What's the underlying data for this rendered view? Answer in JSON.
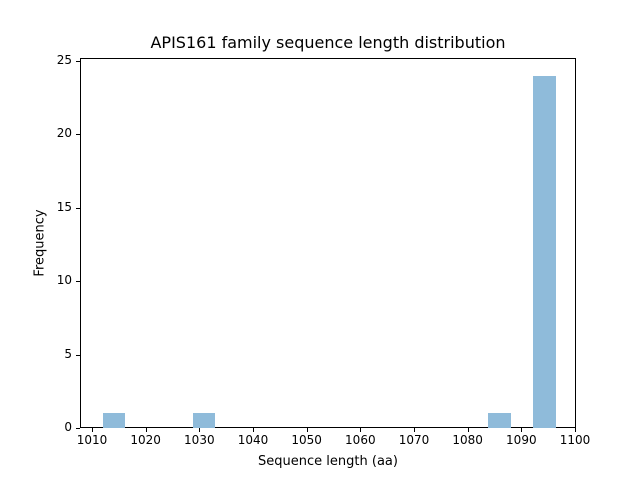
{
  "chart_data": {
    "type": "bar",
    "title": "APIS161 family sequence length distribution",
    "xlabel": "Sequence length (aa)",
    "ylabel": "Frequency",
    "xlim": [
      1008,
      1100
    ],
    "ylim": [
      0,
      25.2
    ],
    "xticks": [
      1010,
      1020,
      1030,
      1040,
      1050,
      1060,
      1070,
      1080,
      1090,
      1100
    ],
    "yticks": [
      0,
      5,
      10,
      15,
      20,
      25
    ],
    "bins": [
      {
        "start": 1012.0,
        "end": 1016.2,
        "count": 1
      },
      {
        "start": 1028.8,
        "end": 1033.0,
        "count": 1
      },
      {
        "start": 1083.8,
        "end": 1088.0,
        "count": 1
      },
      {
        "start": 1092.2,
        "end": 1096.4,
        "count": 24
      }
    ],
    "color": "#8fbbda",
    "grid": false,
    "legend": null
  }
}
